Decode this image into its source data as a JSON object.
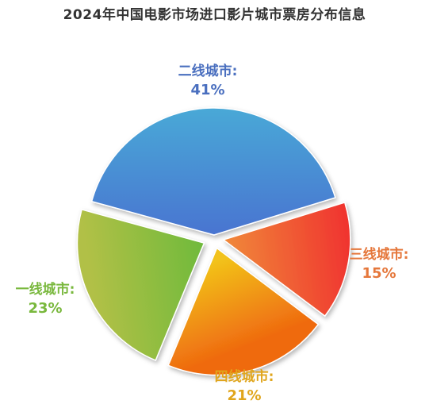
{
  "chart_data": {
    "type": "pie",
    "title": "2024年中国电影市场进口影片城市票房分布信息",
    "value_suffix": "%",
    "slices": [
      {
        "name": "二线城市",
        "label": "二线城市:",
        "value": 41,
        "value_text": "41%",
        "colors": [
          "#4ab3d8",
          "#4a6fd0"
        ],
        "label_color": "#4a6fbf"
      },
      {
        "name": "三线城市",
        "label": "三线城市:",
        "value": 15,
        "value_text": "15%",
        "colors": [
          "#f0342f",
          "#f08a3a"
        ],
        "label_color": "#e5773b"
      },
      {
        "name": "四线城市",
        "label": "四线城市:",
        "value": 21,
        "value_text": "21%",
        "colors": [
          "#ef6a10",
          "#f2c21a"
        ],
        "label_color": "#e0a51c"
      },
      {
        "name": "一线城市",
        "label": "一线城市:",
        "value": 23,
        "value_text": "23%",
        "colors": [
          "#b1c046",
          "#70ba3c"
        ],
        "label_color": "#79b83d"
      }
    ]
  }
}
